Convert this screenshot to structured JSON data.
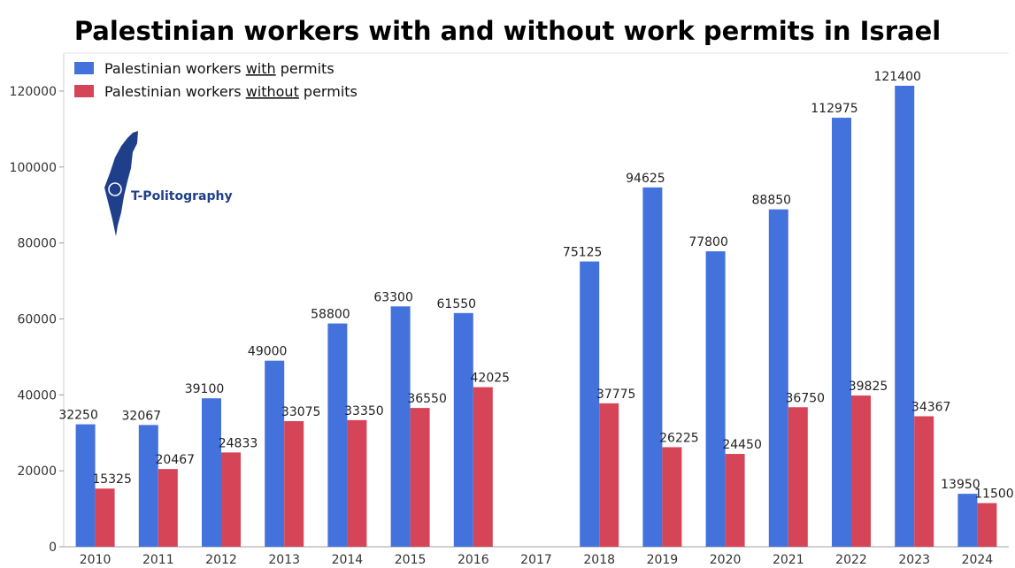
{
  "chart_data": {
    "type": "bar",
    "title": "Palestinian workers with and without work permits in Israel",
    "categories": [
      "2010",
      "2011",
      "2012",
      "2013",
      "2014",
      "2015",
      "2016",
      "2017",
      "2018",
      "2019",
      "2020",
      "2021",
      "2022",
      "2023",
      "2024"
    ],
    "series": [
      {
        "name": "Palestinian workers with permits",
        "legend_prefix": "Palestinian workers ",
        "legend_underlined": "with",
        "legend_suffix": " permits",
        "color": "#4472dc",
        "values": [
          32250,
          32067,
          39100,
          49000,
          58800,
          63300,
          61550,
          null,
          75125,
          94625,
          77800,
          88850,
          112975,
          121400,
          13950
        ]
      },
      {
        "name": "Palestinian workers without permits",
        "legend_prefix": "Palestinian workers ",
        "legend_underlined": "without",
        "legend_suffix": " permits",
        "color": "#d64557",
        "values": [
          15325,
          20467,
          24833,
          33075,
          33350,
          36550,
          42025,
          null,
          37775,
          26225,
          24450,
          36750,
          39825,
          34367,
          11500
        ]
      }
    ],
    "ylim": [
      0,
      130000
    ],
    "yticks": [
      0,
      20000,
      40000,
      60000,
      80000,
      100000,
      120000
    ],
    "xlabel": "",
    "ylabel": "",
    "grid": false,
    "legend_position": "top-left"
  },
  "logo": {
    "text": "T-Politography",
    "icon": "israel-map-logo-icon",
    "color": "#1f3f8a"
  }
}
